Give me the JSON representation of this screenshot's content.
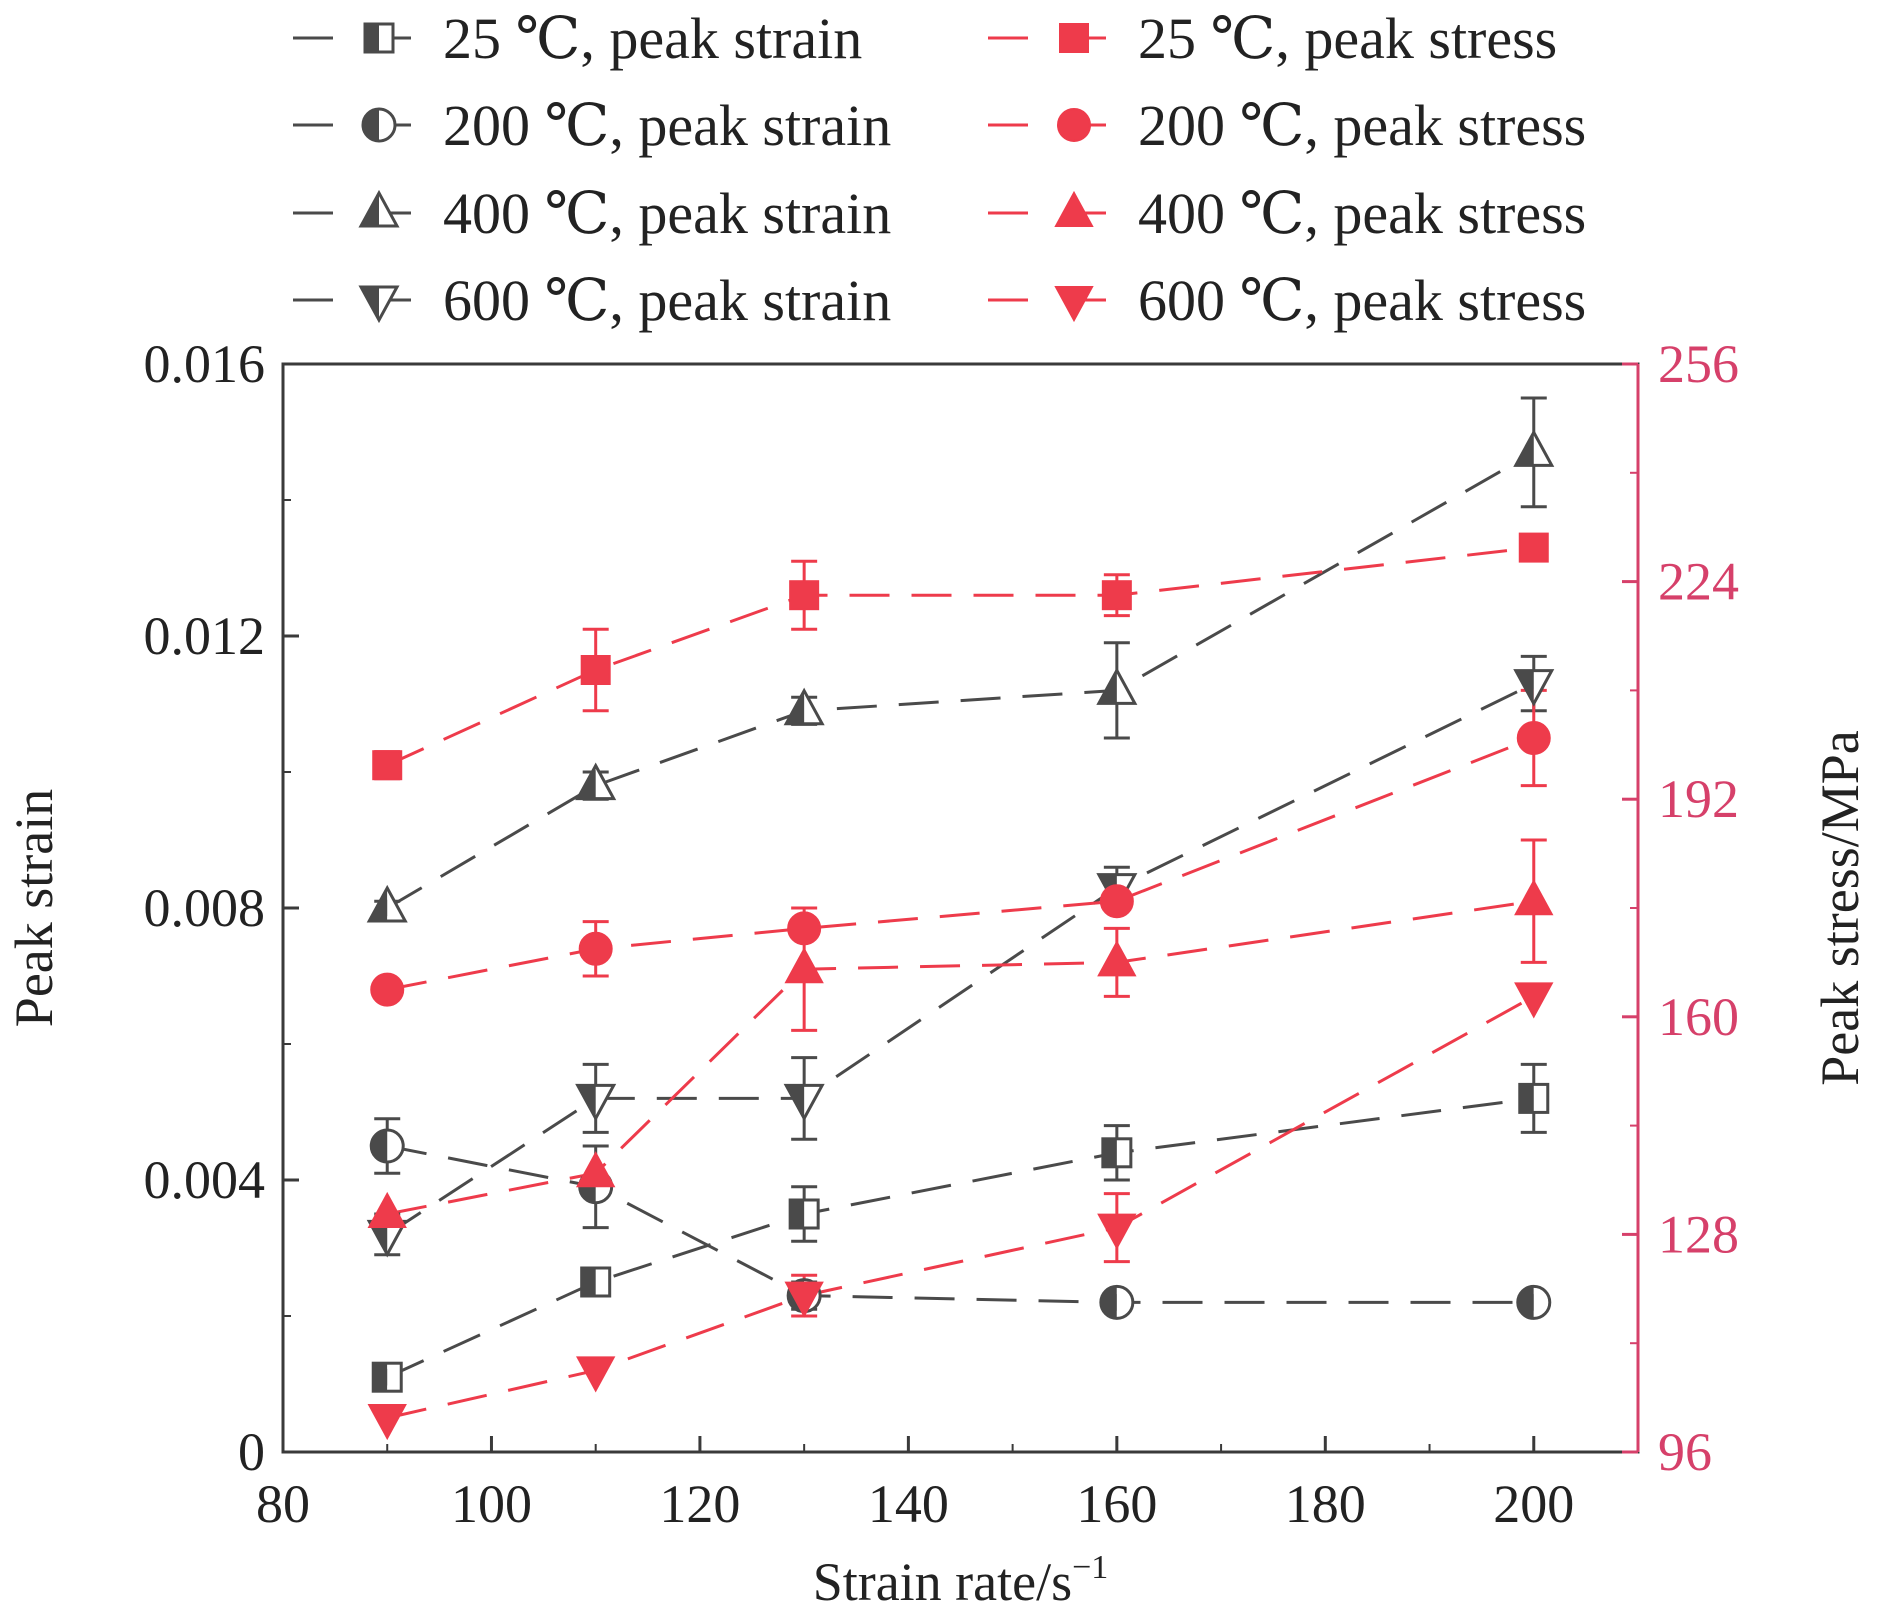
{
  "colors": {
    "axis_left": "#3a3a3a",
    "axis_right": "#d6406a",
    "strain_series": "#4a4a4a",
    "stress_series": "#ee3b4b",
    "background": "#ffffff"
  },
  "legend": {
    "entries": [
      {
        "label": "25 ℃, peak strain"
      },
      {
        "label": "200 ℃, peak strain"
      },
      {
        "label": "400 ℃, peak strain"
      },
      {
        "label": "600 ℃, peak strain"
      },
      {
        "label": "25 ℃, peak stress"
      },
      {
        "label": "200 ℃, peak stress"
      },
      {
        "label": "400 ℃, peak stress"
      },
      {
        "label": "600 ℃, peak stress"
      }
    ]
  },
  "chart_data": {
    "type": "scatter",
    "xlabel": "Strain rate/s",
    "xlabel_sup": "−1",
    "ylabel": "Peak strain",
    "y2label": "Peak stress/MPa",
    "xlim": [
      80,
      210
    ],
    "ylim": [
      0,
      0.016
    ],
    "y2lim": [
      96,
      256
    ],
    "xticks": [
      "80",
      "100",
      "120",
      "140",
      "160",
      "180",
      "200"
    ],
    "xtick_values": [
      80,
      100,
      120,
      140,
      160,
      180,
      200
    ],
    "yticks": [
      "0",
      "0.004",
      "0.008",
      "0.012",
      "0.016"
    ],
    "ytick_values": [
      0,
      0.004,
      0.008,
      0.012,
      0.016
    ],
    "y2ticks": [
      "96",
      "128",
      "160",
      "192",
      "224",
      "256"
    ],
    "y2tick_values": [
      96,
      128,
      160,
      192,
      224,
      256
    ],
    "grid": false,
    "legend_position": "top",
    "line_style": "dashed",
    "x": [
      90,
      110,
      130,
      160,
      200
    ],
    "series": [
      {
        "name": "25 ℃, peak strain",
        "axis": "left",
        "marker": "square-half",
        "color": "#4a4a4a",
        "values": [
          0.0011,
          0.0025,
          0.0035,
          0.0044,
          0.0052
        ],
        "errors": [
          0.0001,
          0.0002,
          0.0004,
          0.0004,
          0.0005
        ]
      },
      {
        "name": "200 ℃, peak strain",
        "axis": "left",
        "marker": "circle-half",
        "color": "#4a4a4a",
        "values": [
          0.0045,
          0.0039,
          0.0023,
          0.0022,
          0.0022
        ],
        "errors": [
          0.0004,
          0.0006,
          0.0002,
          0.0001,
          0.0001
        ]
      },
      {
        "name": "400 ℃, peak strain",
        "axis": "left",
        "marker": "triangle-up-half",
        "color": "#4a4a4a",
        "values": [
          0.008,
          0.0098,
          0.0109,
          0.0112,
          0.0147
        ],
        "errors": [
          0.0001,
          0.0002,
          0.0002,
          0.0007,
          0.0008
        ]
      },
      {
        "name": "600 ℃, peak strain",
        "axis": "left",
        "marker": "triangle-down-half",
        "color": "#4a4a4a",
        "values": [
          0.0032,
          0.0052,
          0.0052,
          0.0083,
          0.0113
        ],
        "errors": [
          0.0003,
          0.0005,
          0.0006,
          0.0003,
          0.0004
        ]
      },
      {
        "name": "25 ℃, peak stress",
        "axis": "right",
        "marker": "square",
        "color": "#ee3b4b",
        "values": [
          197,
          211,
          222,
          222,
          229
        ],
        "errors": [
          2,
          6,
          5,
          3,
          0
        ]
      },
      {
        "name": "200 ℃, peak stress",
        "axis": "right",
        "marker": "circle",
        "color": "#ee3b4b",
        "values": [
          164,
          170,
          173,
          177,
          201
        ],
        "errors": [
          0,
          4,
          0,
          0,
          7
        ]
      },
      {
        "name": "400 ℃, peak stress",
        "axis": "right",
        "marker": "triangle-up",
        "color": "#ee3b4b",
        "values": [
          131,
          137,
          167,
          168,
          177
        ],
        "errors": [
          0,
          0,
          9,
          5,
          9
        ]
      },
      {
        "name": "600 ℃, peak stress",
        "axis": "right",
        "marker": "triangle-down",
        "color": "#ee3b4b",
        "values": [
          101,
          108,
          119,
          129,
          163
        ],
        "errors": [
          0,
          0,
          3,
          5,
          0
        ]
      }
    ]
  }
}
